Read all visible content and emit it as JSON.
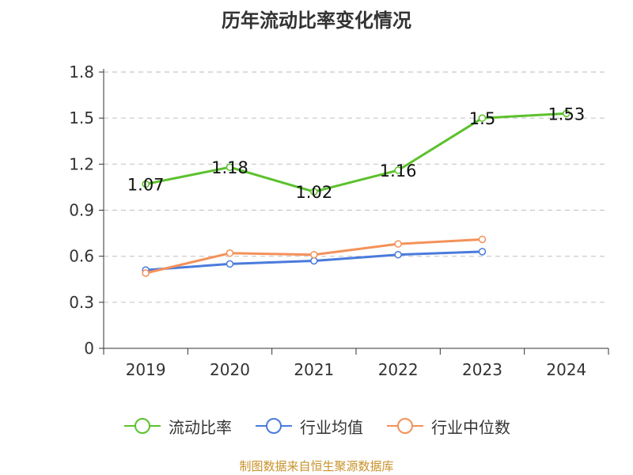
{
  "chart_data": {
    "type": "line",
    "title": "历年流动比率变化情况",
    "categories": [
      "2019",
      "2020",
      "2021",
      "2022",
      "2023",
      "2024"
    ],
    "series": [
      {
        "name": "流动比率",
        "color": "#5cc12d",
        "values": [
          1.07,
          1.18,
          1.02,
          1.16,
          1.5,
          1.53
        ],
        "labels": [
          "1.07",
          "1.18",
          "1.02",
          "1.16",
          "1.5",
          "1.53"
        ]
      },
      {
        "name": "行业均值",
        "color": "#4a7bdc",
        "values": [
          0.51,
          0.55,
          0.57,
          0.61,
          0.63,
          null
        ]
      },
      {
        "name": "行业中位数",
        "color": "#f4915a",
        "values": [
          0.49,
          0.62,
          0.61,
          0.68,
          0.71,
          null
        ]
      }
    ],
    "ylim": [
      0,
      1.8
    ],
    "yticks": [
      "0",
      "0.3",
      "0.6",
      "0.9",
      "1.2",
      "1.5",
      "1.8"
    ],
    "grid": true,
    "legend_position": "bottom"
  },
  "footer": {
    "source": "制图数据来自恒生聚源数据库"
  }
}
